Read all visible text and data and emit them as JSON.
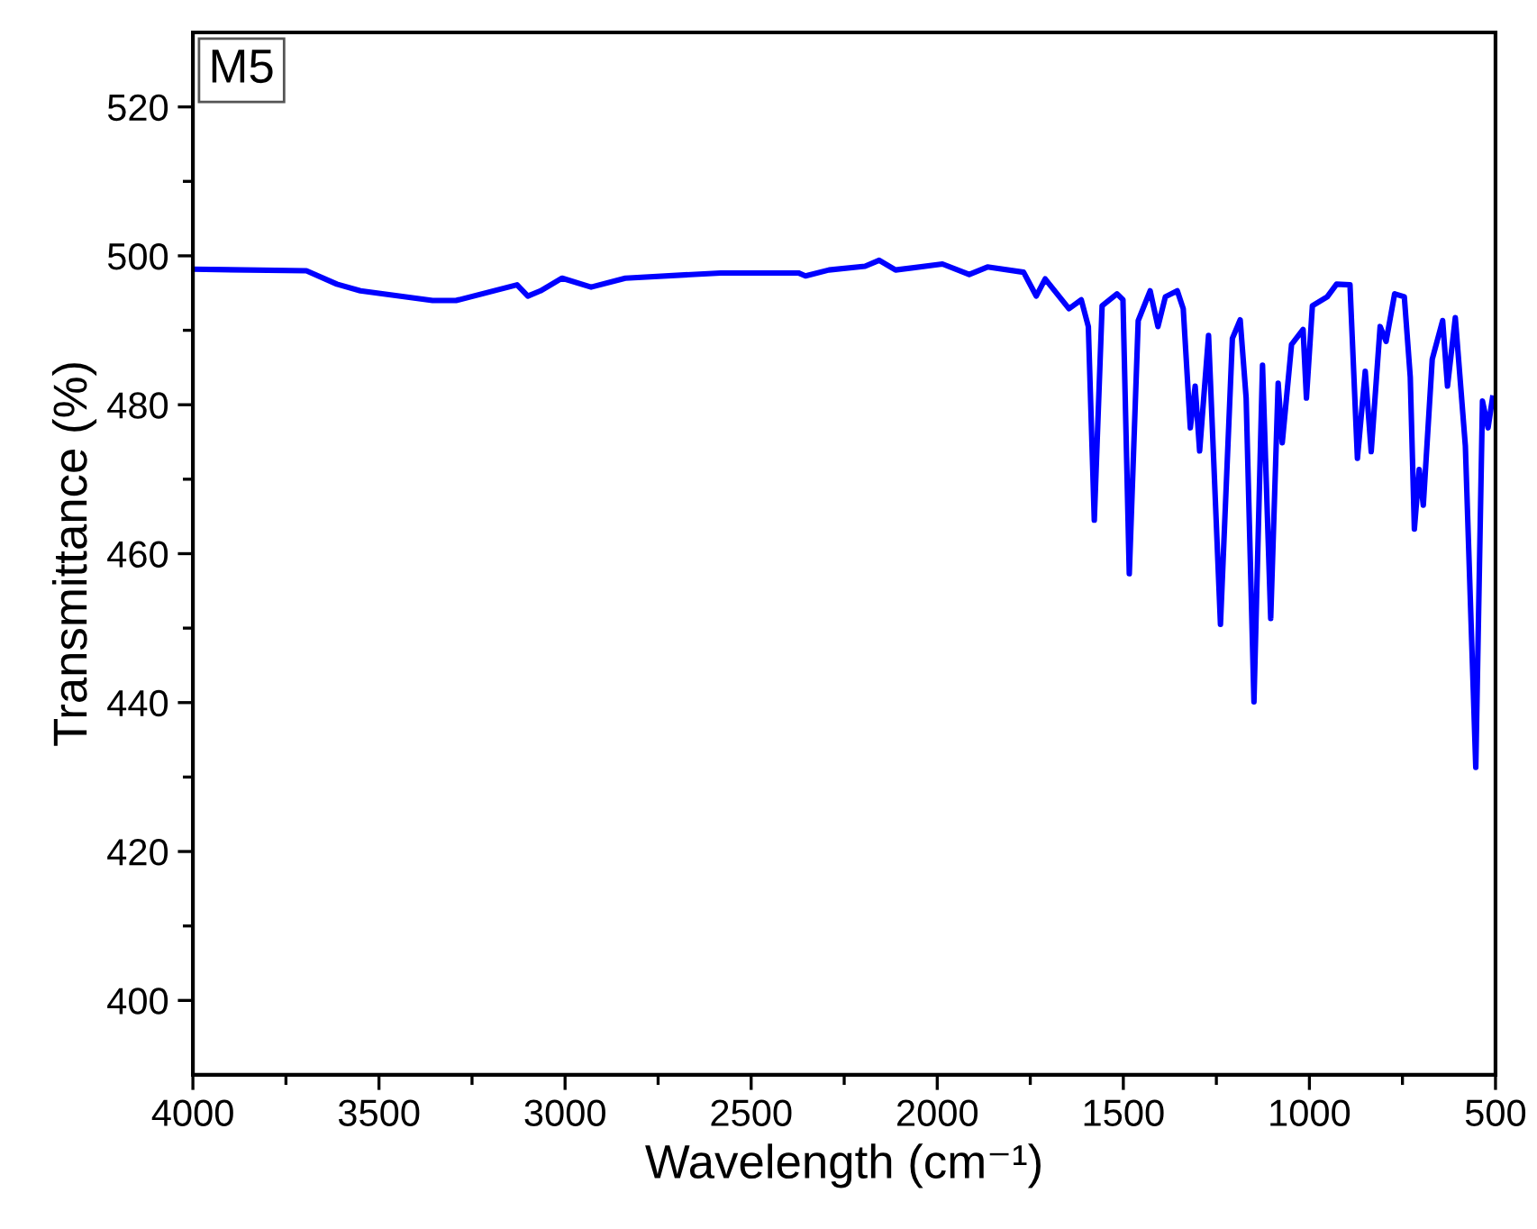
{
  "chart_data": {
    "type": "line",
    "xlabel": "Wavelength (cm⁻¹)",
    "ylabel": "Transmittance (%)",
    "annotations": [
      "M5"
    ],
    "xlim": [
      4000,
      500
    ],
    "ylim": [
      390,
      530
    ],
    "xticks": [
      4000,
      {
        "value": 3750,
        "label": null
      },
      3500,
      {
        "value": 3250,
        "label": null
      },
      3000,
      {
        "value": 2750,
        "label": null
      },
      2500,
      {
        "value": 2250,
        "label": null
      },
      2000,
      {
        "value": 1750,
        "label": null
      },
      1500,
      {
        "value": 1250,
        "label": null
      },
      1000,
      {
        "value": 750,
        "label": null
      },
      500
    ],
    "yticks": [
      400,
      {
        "value": 410,
        "label": null
      },
      420,
      {
        "value": 430,
        "label": null
      },
      440,
      {
        "value": 450,
        "label": null
      },
      460,
      {
        "value": 470,
        "label": null
      },
      480,
      {
        "value": 490,
        "label": null
      },
      500,
      {
        "value": 510,
        "label": null
      },
      520
    ],
    "grid": false,
    "legend": false,
    "marker": "none",
    "line_style": "solid",
    "series": [
      {
        "color": "#0000ff",
        "x": [
          4000,
          3695,
          3613,
          3550,
          3356,
          3293,
          3129,
          3100,
          3066,
          3008,
          2930,
          2838,
          2582,
          2373,
          2354,
          2291,
          2194,
          2156,
          2112,
          1986,
          1914,
          1865,
          1768,
          1734,
          1710,
          1646,
          1613,
          1594,
          1578,
          1557,
          1517,
          1501,
          1484,
          1460,
          1428,
          1407,
          1387,
          1355,
          1339,
          1320,
          1307,
          1295,
          1271,
          1239,
          1207,
          1186,
          1170,
          1149,
          1126,
          1104,
          1084,
          1073,
          1048,
          1017,
          1008,
          992,
          952,
          927,
          891,
          871,
          850,
          834,
          810,
          794,
          771,
          745,
          729,
          718,
          705,
          694,
          670,
          642,
          629,
          608,
          581,
          553,
          535,
          520,
          508
        ],
        "values": [
          498.2,
          498,
          496.2,
          495.3,
          494,
          494,
          496.1,
          494.6,
          495.3,
          497,
          495.8,
          497,
          497.7,
          497.7,
          497.3,
          498.1,
          498.6,
          499.4,
          498.1,
          498.9,
          497.5,
          498.5,
          497.8,
          494.6,
          496.9,
          492.9,
          494.1,
          490.5,
          464.5,
          493.3,
          494.9,
          494.1,
          457.3,
          491.3,
          495.3,
          490.5,
          494.5,
          495.3,
          492.9,
          476.9,
          482.5,
          473.8,
          489.3,
          450.5,
          488.9,
          491.4,
          480.9,
          440.1,
          485.3,
          451.3,
          482.9,
          474.9,
          488.1,
          490.1,
          480.9,
          493.3,
          494.5,
          496.2,
          496.1,
          472.8,
          484.5,
          473.7,
          490.5,
          488.5,
          494.9,
          494.5,
          483.7,
          463.3,
          471.3,
          466.5,
          486.1,
          491.3,
          482.5,
          491.7,
          474.5,
          431.3,
          480.5,
          476.9,
          480.9
        ]
      }
    ]
  }
}
